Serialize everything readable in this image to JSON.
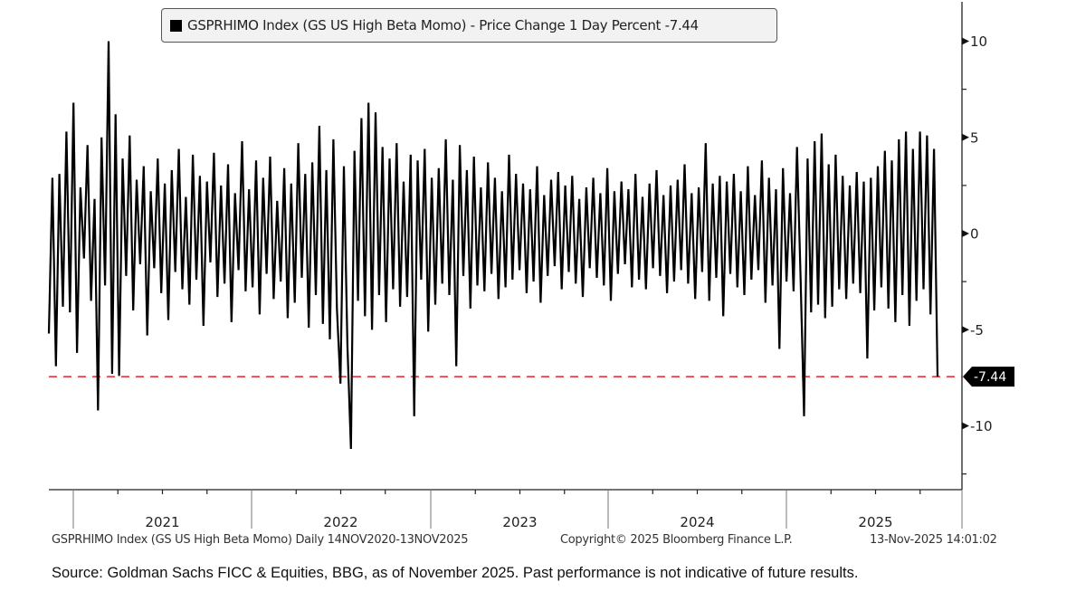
{
  "legend": {
    "text": "GSPRHIMO Index (GS US High Beta Momo) - Price Change 1 Day Percent -7.44",
    "swatch_color": "#000000"
  },
  "footer": {
    "left": "GSPRHIMO Index (GS US High Beta Momo) Daily 14NOV2020-13NOV2025",
    "middle": "Copyright© 2025 Bloomberg Finance L.P.",
    "right": "13-Nov-2025 14:01:02"
  },
  "source_note": "Source: Goldman Sachs FICC & Equities, BBG, as of November 2025. Past performance is not indicative of future results.",
  "colors": {
    "line": "#000000",
    "reference_line": "#e0262b",
    "last_value_tag": "#000000"
  },
  "chart_data": {
    "type": "line",
    "title": "GSPRHIMO Index (GS US High Beta Momo) - Price Change 1 Day Percent",
    "xlabel": "",
    "ylabel": "",
    "x_start": "14NOV2020",
    "x_end": "13NOV2025",
    "frequency": "Daily (sampled)",
    "ylim": [
      -13.5,
      12
    ],
    "yticks": [
      10,
      5,
      0,
      -5,
      -10
    ],
    "yticklabels": [
      "10",
      "5",
      "0",
      "-5",
      "-10"
    ],
    "yminorticks": [
      7.5,
      2.5,
      -2.5,
      -7.5,
      -12.5
    ],
    "xticklabels": [
      "2021",
      "2022",
      "2023",
      "2024",
      "2025"
    ],
    "grid": false,
    "axis_position": "right",
    "legend_position": "top-center",
    "reference_line": {
      "value": -7.44,
      "style": "dashed",
      "label": "-7.44"
    },
    "last_value": -7.44,
    "series": [
      {
        "name": "GSPRHIMO Index (GS US High Beta Momo)",
        "values": [
          -5.2,
          2.9,
          -6.9,
          3.1,
          -3.8,
          5.3,
          -4.1,
          6.8,
          -6.2,
          2.4,
          -1.3,
          4.6,
          -3.5,
          1.8,
          -9.2,
          5.0,
          -2.7,
          10.0,
          -7.3,
          6.2,
          -7.4,
          3.9,
          -2.2,
          5.1,
          -4.0,
          2.8,
          -1.6,
          3.5,
          -5.3,
          2.2,
          -1.8,
          3.9,
          -3.1,
          2.6,
          -4.5,
          3.3,
          -2.0,
          4.4,
          -2.9,
          1.9,
          -3.7,
          4.1,
          -2.4,
          3.0,
          -4.8,
          2.7,
          -1.5,
          4.2,
          -3.3,
          2.5,
          -2.6,
          3.6,
          -4.6,
          2.1,
          -1.9,
          4.8,
          -3.0,
          2.3,
          -2.8,
          3.8,
          -4.2,
          2.9,
          -2.1,
          4.0,
          -3.4,
          1.7,
          -2.5,
          3.4,
          -4.4,
          2.6,
          -3.6,
          4.7,
          -2.3,
          3.1,
          -4.9,
          3.7,
          -3.2,
          5.6,
          -4.7,
          3.3,
          -5.5,
          4.9,
          -3.9,
          -7.8,
          3.5,
          -5.8,
          -11.2,
          4.3,
          -3.5,
          6.0,
          -4.3,
          6.8,
          -5.0,
          6.3,
          -3.2,
          4.5,
          -4.6,
          3.9,
          -2.9,
          4.7,
          -3.8,
          2.7,
          -3.3,
          4.1,
          -9.5,
          3.8,
          -2.4,
          4.4,
          -5.1,
          2.9,
          -3.7,
          3.4,
          -2.6,
          4.9,
          -3.2,
          2.8,
          -6.9,
          4.6,
          -2.2,
          3.3,
          -3.9,
          4.0,
          -2.7,
          2.4,
          -3.0,
          3.7,
          -2.1,
          2.9,
          -3.4,
          2.2,
          -2.8,
          4.1,
          -2.4,
          3.1,
          -1.9,
          2.6,
          -3.1,
          2.3,
          -2.5,
          3.5,
          -3.6,
          2.0,
          -2.2,
          2.8,
          -1.7,
          3.2,
          -2.9,
          2.5,
          -2.0,
          3.0,
          -2.6,
          1.8,
          -3.3,
          2.4,
          -1.8,
          2.9,
          -2.3,
          2.1,
          -2.7,
          3.4,
          -3.5,
          2.2,
          -2.1,
          2.7,
          -1.6,
          2.3,
          -2.8,
          3.1,
          -2.4,
          1.9,
          -2.9,
          2.6,
          -1.8,
          3.3,
          -2.2,
          2.0,
          -3.1,
          2.5,
          -2.5,
          2.8,
          -1.9,
          3.6,
          -2.6,
          2.1,
          -3.4,
          2.4,
          -2.0,
          4.7,
          -3.5,
          2.6,
          -2.3,
          3.0,
          -4.3,
          2.7,
          -2.1,
          3.1,
          -2.8,
          2.2,
          -3.2,
          3.5,
          -2.4,
          2.0,
          -1.9,
          3.8,
          -3.6,
          2.9,
          -2.7,
          2.3,
          -6.0,
          3.4,
          -2.5,
          2.1,
          -3.0,
          4.5,
          -2.2,
          -9.5,
          3.9,
          -4.1,
          4.8,
          -3.7,
          5.2,
          -4.4,
          3.6,
          -3.8,
          4.1,
          -2.9,
          3.0,
          -3.4,
          2.5,
          -2.6,
          3.2,
          -3.1,
          2.7,
          -6.5,
          2.9,
          -4.0,
          3.5,
          -2.8,
          4.3,
          -3.9,
          3.8,
          -4.6,
          4.9,
          -3.2,
          5.3,
          -4.8,
          4.4,
          -3.5,
          5.3,
          -2.9,
          5.1,
          -4.2,
          4.4,
          -7.44
        ]
      }
    ]
  }
}
